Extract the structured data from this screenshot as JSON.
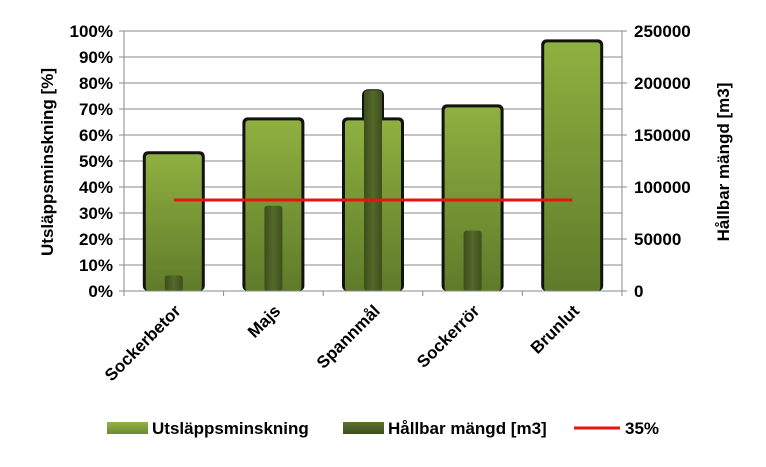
{
  "chart_data": {
    "type": "bar",
    "categories": [
      "Sockerbetor",
      "Majs",
      "Spannmål",
      "Sockerrör",
      "Brunlut"
    ],
    "series": [
      {
        "name": "Utsläppsminskning",
        "axis": "left",
        "values": [
          53,
          66,
          66,
          71,
          96
        ],
        "color": "#7a9a36"
      },
      {
        "name": "Hållbar mängd [m3]",
        "axis": "right",
        "values": [
          15000,
          82000,
          193000,
          58000,
          0
        ],
        "color": "#4f6326"
      },
      {
        "name": "35%",
        "type": "line",
        "axis": "left",
        "value": 35,
        "color": "#e8140f"
      }
    ],
    "ylabel": "Utsläppsminskning [%]",
    "y2label": "Hållbar mängd [m3]",
    "ylim": [
      0,
      100
    ],
    "y2lim": [
      0,
      250000
    ],
    "yticks": [
      "0%",
      "10%",
      "20%",
      "30%",
      "40%",
      "50%",
      "60%",
      "70%",
      "80%",
      "90%",
      "100%"
    ],
    "y2ticks": [
      "0",
      "50000",
      "100000",
      "150000",
      "200000",
      "250000"
    ],
    "grid": true,
    "legend": "bottom"
  }
}
